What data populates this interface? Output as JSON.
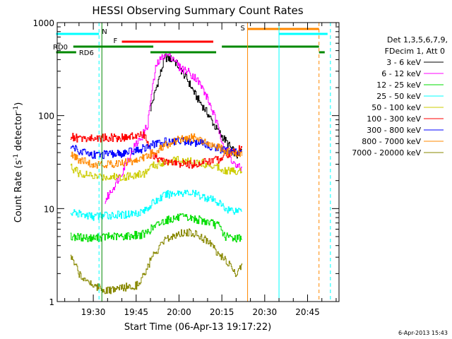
{
  "chart_data": {
    "type": "line",
    "title": "HESSI Observing Summary Count Rates",
    "xlabel": "Start Time (06-Apr-13 19:17:22)",
    "ylabel": "Count Rate (s⁻¹ detector⁻¹)",
    "ylabel_parts": {
      "a": "Count Rate (s",
      "sup1": "-1",
      "b": " detector",
      "sup2": "-1",
      "c": ")"
    },
    "y_scale": "log",
    "ylim": [
      1,
      1000
    ],
    "y_ticks": [
      "1",
      "10",
      "100",
      "1000"
    ],
    "xlim": [
      "19:17:22",
      "20:56:00"
    ],
    "x_ticks": [
      "19:30",
      "19:45",
      "20:00",
      "20:15",
      "20:30",
      "20:45"
    ],
    "legend_header": [
      "Det 1,3,5,6,7,9,",
      "FDecim 1, Att 0"
    ],
    "legend_position": "right",
    "grid": false,
    "timestamp": "6-Apr-2013 15:43",
    "series": [
      {
        "name": "3 - 6 keV",
        "color": "#000000",
        "x": [
          "19:50",
          "19:52",
          "19:55",
          "19:58",
          "20:00",
          "20:03",
          "20:06",
          "20:10",
          "20:13",
          "20:16",
          "20:18",
          "20:20",
          "20:21",
          "20:22"
        ],
        "y": [
          120,
          200,
          420,
          400,
          330,
          240,
          160,
          105,
          72,
          55,
          45,
          38,
          36,
          45
        ]
      },
      {
        "name": "6 - 12 keV",
        "color": "#ff00ff",
        "x": [
          "19:34",
          "19:37",
          "19:40",
          "19:44",
          "19:47",
          "19:49",
          "19:50",
          "19:52",
          "19:55",
          "19:58",
          "20:00",
          "20:03",
          "20:06",
          "20:08",
          "20:10",
          "20:12",
          "20:14",
          "20:16",
          "20:18",
          "20:20",
          "20:22"
        ],
        "y": [
          12,
          17,
          25,
          45,
          60,
          80,
          150,
          350,
          460,
          420,
          330,
          300,
          250,
          200,
          150,
          105,
          68,
          45,
          35,
          28,
          27
        ]
      },
      {
        "name": "12 - 25 keV",
        "color": "#00dd00",
        "x": [
          "19:22",
          "19:30",
          "19:35",
          "19:40",
          "19:45",
          "19:48",
          "19:50",
          "19:55",
          "20:00",
          "20:05",
          "20:10",
          "20:14",
          "20:16",
          "20:20",
          "20:22"
        ],
        "y": [
          5,
          4.8,
          5,
          5,
          5.2,
          5.3,
          6,
          7.5,
          8,
          7.8,
          7.2,
          6.5,
          5,
          4.8,
          5
        ]
      },
      {
        "name": "25 - 50 keV",
        "color": "#00ffff",
        "x": [
          "19:22",
          "19:30",
          "19:35",
          "19:40",
          "19:45",
          "19:48",
          "19:50",
          "19:55",
          "20:00",
          "20:05",
          "20:10",
          "20:14",
          "20:16",
          "20:20",
          "20:22"
        ],
        "y": [
          9,
          8.2,
          8.5,
          8.5,
          9,
          9.5,
          11,
          14,
          15,
          14.5,
          13,
          11.5,
          10,
          9.5,
          10
        ]
      },
      {
        "name": "50 - 100 keV",
        "color": "#cccc00",
        "x": [
          "19:22",
          "19:25",
          "19:30",
          "19:35",
          "19:40",
          "19:45",
          "19:48",
          "19:50",
          "19:55",
          "20:00",
          "20:05",
          "20:10",
          "20:14",
          "20:16",
          "20:20",
          "20:22"
        ],
        "y": [
          28,
          24,
          22,
          22,
          22,
          23,
          24,
          28,
          32,
          33,
          32,
          30,
          28,
          26,
          25,
          26
        ]
      },
      {
        "name": "100 - 300 keV",
        "color": "#ff0000",
        "x": [
          "19:22",
          "19:25",
          "19:30",
          "19:35",
          "19:40",
          "19:45",
          "19:48",
          "19:50",
          "19:55",
          "20:00",
          "20:05",
          "20:10",
          "20:14",
          "20:16",
          "20:20",
          "20:22"
        ],
        "y": [
          60,
          56,
          57,
          58,
          58,
          60,
          62,
          38,
          32,
          30,
          30,
          32,
          34,
          38,
          42,
          44
        ]
      },
      {
        "name": "300 - 800 keV",
        "color": "#0000ff",
        "x": [
          "19:22",
          "19:25",
          "19:30",
          "19:35",
          "19:40",
          "19:45",
          "19:48",
          "19:50",
          "19:55",
          "20:00",
          "20:05",
          "20:10",
          "20:14",
          "20:16",
          "20:20",
          "20:22"
        ],
        "y": [
          48,
          42,
          38,
          38,
          39,
          42,
          45,
          48,
          52,
          54,
          52,
          48,
          44,
          42,
          40,
          42
        ]
      },
      {
        "name": "800 - 7000 keV",
        "color": "#ff8800",
        "x": [
          "19:22",
          "19:25",
          "19:30",
          "19:35",
          "19:40",
          "19:45",
          "19:48",
          "19:50",
          "19:55",
          "20:00",
          "20:05",
          "20:10",
          "20:14",
          "20:16",
          "20:20",
          "20:22"
        ],
        "y": [
          38,
          33,
          30,
          30,
          31,
          33,
          36,
          38,
          48,
          55,
          58,
          52,
          45,
          42,
          38,
          40
        ]
      },
      {
        "name": "7000 - 20000 keV",
        "color": "#888800",
        "x": [
          "19:22",
          "19:25",
          "19:30",
          "19:35",
          "19:40",
          "19:45",
          "19:48",
          "19:50",
          "19:55",
          "20:00",
          "20:05",
          "20:10",
          "20:14",
          "20:16",
          "20:20",
          "20:22"
        ],
        "y": [
          3,
          2,
          1.5,
          1.3,
          1.4,
          1.5,
          2,
          2.8,
          4.5,
          5.5,
          5.5,
          4.5,
          3.2,
          2.8,
          2,
          2.5
        ]
      }
    ],
    "flags": [
      {
        "name": "N",
        "color": "#00ffff",
        "label": "N",
        "segments": [
          [
            "19:17",
            "19:32"
          ],
          [
            "20:35",
            "20:52"
          ]
        ]
      },
      {
        "name": "S",
        "color": "#ff8800",
        "label": "S",
        "segments": [
          [
            "20:24",
            "20:49"
          ]
        ]
      },
      {
        "name": "F",
        "color": "#ff0000",
        "label": "F",
        "segments": [
          [
            "19:40",
            "20:12"
          ]
        ]
      },
      {
        "name": "RD0",
        "color": "#008800",
        "label": "RD0",
        "segments": [
          [
            "19:23",
            "19:51"
          ],
          [
            "20:15",
            "20:49"
          ]
        ]
      },
      {
        "name": "RD6",
        "color": "#008800",
        "label": "RD6",
        "segments": [
          [
            "19:17",
            "19:24"
          ],
          [
            "19:50",
            "20:13"
          ],
          [
            "20:49",
            "20:51"
          ]
        ]
      }
    ]
  }
}
